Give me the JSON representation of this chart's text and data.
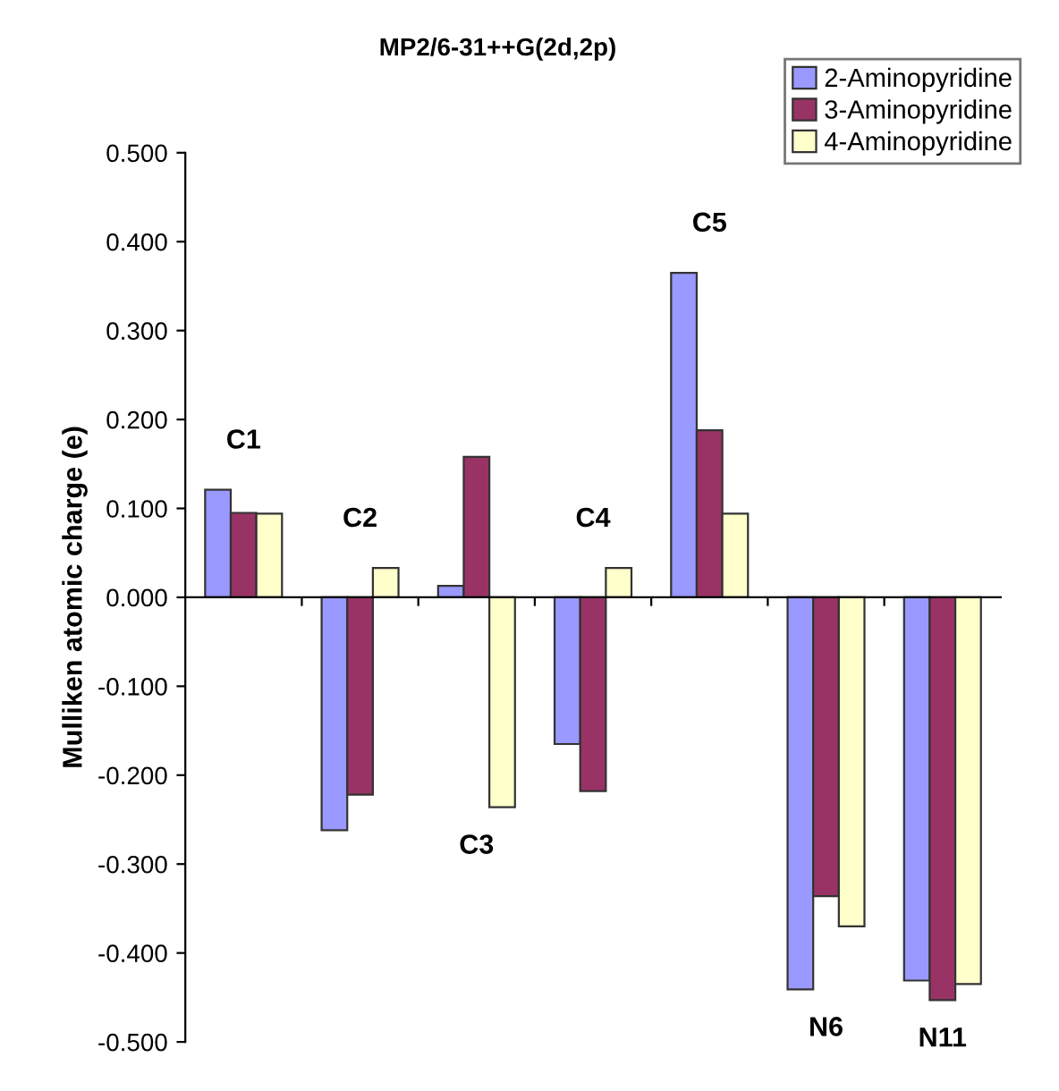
{
  "chart_data": {
    "type": "bar",
    "title": "MP2/6-31++G(2d,2p)",
    "ylabel": "Mulliken atomic charge (e)",
    "categories": [
      "C1",
      "C2",
      "C3",
      "C4",
      "C5",
      "N6",
      "N11"
    ],
    "series": [
      {
        "name": "2-Aminopyridine",
        "color": "#9999ff",
        "values": [
          0.121,
          -0.262,
          0.013,
          -0.165,
          0.365,
          -0.441,
          -0.431
        ]
      },
      {
        "name": "3-Aminopyridine",
        "color": "#993366",
        "values": [
          0.095,
          -0.222,
          0.158,
          -0.218,
          0.188,
          -0.336,
          -0.453
        ]
      },
      {
        "name": "4-Aminopyridine",
        "color": "#ffffcc",
        "values": [
          0.094,
          0.033,
          -0.236,
          0.033,
          0.094,
          -0.37,
          -0.435
        ]
      }
    ],
    "ylim": [
      -0.5,
      0.5
    ],
    "yticks": [
      {
        "value": -0.5,
        "label": "-0.500"
      },
      {
        "value": -0.4,
        "label": "-0.400"
      },
      {
        "value": -0.3,
        "label": "-0.300"
      },
      {
        "value": -0.2,
        "label": "-0.200"
      },
      {
        "value": -0.1,
        "label": "-0.100"
      },
      {
        "value": 0,
        "label": "0.000"
      },
      {
        "value": 0.1,
        "label": "0.100"
      },
      {
        "value": 0.2,
        "label": "0.200"
      },
      {
        "value": 0.3,
        "label": "0.300"
      },
      {
        "value": 0.4,
        "label": "0.400"
      },
      {
        "value": 0.5,
        "label": "0.500"
      }
    ],
    "grid": false,
    "legend": "top right"
  }
}
